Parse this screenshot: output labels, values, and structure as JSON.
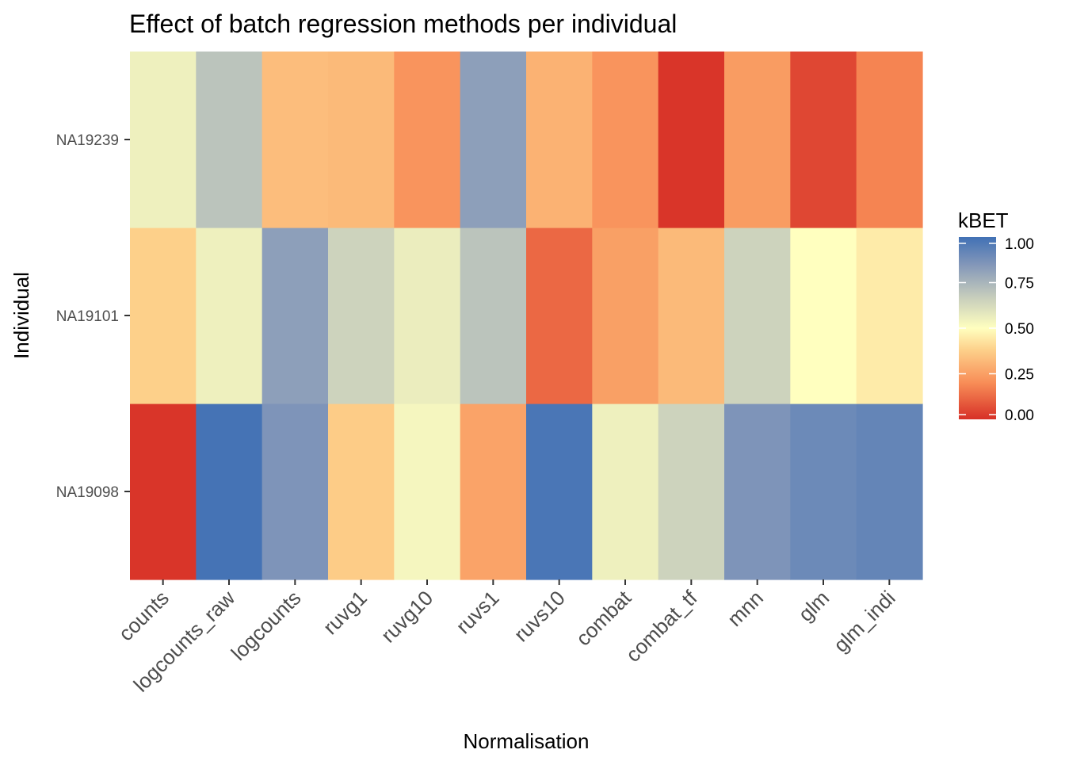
{
  "chart_data": {
    "type": "heatmap",
    "title": "Effect of batch regression methods per individual",
    "xlabel": "Normalisation",
    "ylabel": "Individual",
    "x_categories": [
      "counts",
      "logcounts_raw",
      "logcounts",
      "ruvg1",
      "ruvg10",
      "ruvs1",
      "ruvs10",
      "combat",
      "combat_tf",
      "mnn",
      "glm",
      "glm_indi"
    ],
    "y_categories": [
      "NA19098",
      "NA19101",
      "NA19239"
    ],
    "values": {
      "NA19239": [
        0.55,
        0.7,
        0.33,
        0.32,
        0.22,
        0.82,
        0.3,
        0.22,
        0.01,
        0.24,
        0.05,
        0.18
      ],
      "NA19101": [
        0.38,
        0.55,
        0.82,
        0.65,
        0.56,
        0.7,
        0.12,
        0.25,
        0.32,
        0.65,
        0.5,
        0.45
      ],
      "NA19098": [
        0.01,
        0.99,
        0.86,
        0.37,
        0.53,
        0.26,
        0.98,
        0.55,
        0.65,
        0.86,
        0.9,
        0.92
      ]
    },
    "legend": {
      "title": "kBET",
      "ticks": [
        1.0,
        0.75,
        0.5,
        0.25,
        0.0
      ],
      "tick_labels": [
        "1.00",
        "0.75",
        "0.50",
        "0.25",
        "0.00"
      ],
      "range": [
        0,
        1
      ],
      "placement": "right"
    },
    "colors": {
      "low": "#d73027",
      "lowmid": "#f88d57",
      "mid_low": "#fdd08a",
      "mid": "#ffffbf",
      "mid_high": "#c3cabc",
      "highmid": "#8296b9",
      "high": "#4171b5"
    },
    "grid": false
  }
}
